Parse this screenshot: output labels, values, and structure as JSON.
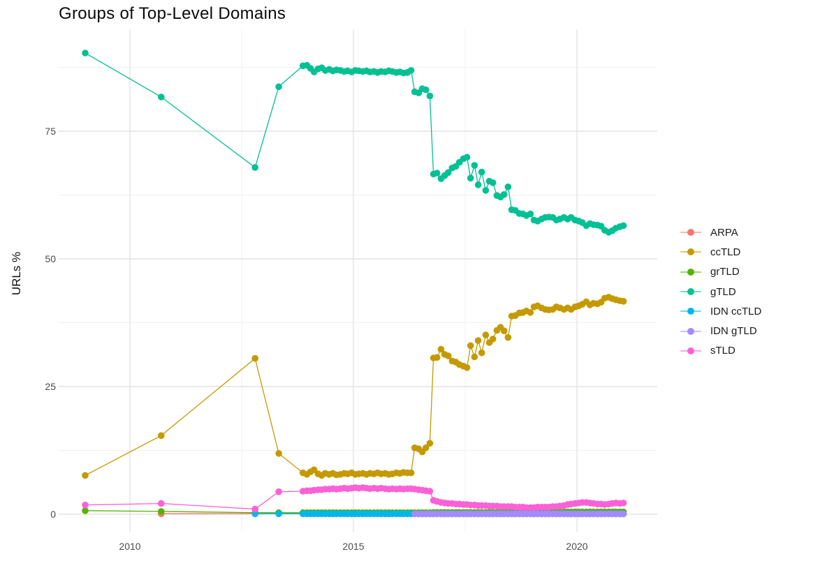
{
  "title": "Groups of Top-Level Domains",
  "chart_data": {
    "type": "line",
    "title": "Groups of Top-Level Domains",
    "xlabel": "",
    "ylabel": "URLs %",
    "xlim": [
      2008.4,
      2021.6
    ],
    "ylim": [
      -4.5,
      95
    ],
    "grid": true,
    "legend_position": "right",
    "x_ticks": [
      {
        "value": 2010,
        "label": "2010"
      },
      {
        "value": 2015,
        "label": "2015"
      },
      {
        "value": 2020,
        "label": "2020"
      }
    ],
    "y_ticks": [
      {
        "value": 0,
        "label": "0"
      },
      {
        "value": 25,
        "label": "25"
      },
      {
        "value": 50,
        "label": "50"
      },
      {
        "value": 75,
        "label": "75"
      }
    ],
    "x_minor": [
      2012.5,
      2017.5
    ],
    "y_minor": [
      12.5,
      37.5,
      62.5,
      87.5
    ],
    "monthly_x": [
      2013.87,
      2013.96,
      2014.04,
      2014.12,
      2014.21,
      2014.29,
      2014.37,
      2014.46,
      2014.54,
      2014.62,
      2014.71,
      2014.79,
      2014.87,
      2014.96,
      2015.04,
      2015.12,
      2015.21,
      2015.29,
      2015.37,
      2015.46,
      2015.54,
      2015.62,
      2015.71,
      2015.79,
      2015.87,
      2015.96,
      2016.04,
      2016.12,
      2016.21,
      2016.29,
      2016.37,
      2016.46,
      2016.54,
      2016.62,
      2016.71,
      2016.79,
      2016.87,
      2016.96,
      2017.04,
      2017.12,
      2017.21,
      2017.29,
      2017.37,
      2017.46,
      2017.54,
      2017.62,
      2017.71,
      2017.79,
      2017.87,
      2017.96,
      2018.04,
      2018.12,
      2018.21,
      2018.29,
      2018.37,
      2018.46,
      2018.54,
      2018.62,
      2018.71,
      2018.79,
      2018.87,
      2018.96,
      2019.04,
      2019.12,
      2019.21,
      2019.29,
      2019.37,
      2019.46,
      2019.54,
      2019.62,
      2019.71,
      2019.79,
      2019.87,
      2019.96,
      2020.04,
      2020.12,
      2020.21,
      2020.29,
      2020.37,
      2020.46,
      2020.54,
      2020.62,
      2020.71,
      2020.79,
      2020.87,
      2020.96,
      2021.04
    ],
    "series": [
      {
        "name": "ARPA",
        "color": "#F8766D",
        "early": [
          [
            2010.7,
            0.1
          ],
          [
            2012.8,
            0.1
          ],
          [
            2013.33,
            0.1
          ]
        ],
        "monthly": [
          0.1,
          0.1,
          0.1,
          0.1,
          0.1,
          0.1,
          0.1,
          0.1,
          0.1,
          0.1,
          0.1,
          0.1,
          0.1,
          0.1,
          0.1,
          0.1,
          0.1,
          0.1,
          0.1,
          0.1,
          0.1,
          0.1,
          0.1,
          0.1,
          0.1,
          0.1,
          0.1,
          0.1,
          0.1,
          0.1,
          0.1,
          0.1,
          0.1,
          0.1,
          0.1,
          0.1,
          0.1,
          0.1,
          0.1,
          0.1,
          0.1,
          0.1,
          0.1,
          0.1,
          0.1,
          0.1,
          0.1,
          0.1,
          0.1,
          0.1,
          0.1,
          0.1,
          0.1,
          0.1,
          0.1,
          0.1,
          0.1,
          0.1,
          0.1,
          0.1,
          0.1,
          0.1,
          0.1,
          0.1,
          0.1,
          0.1,
          0.1,
          0.1,
          0.1,
          0.1,
          0.1,
          0.1,
          0.1,
          0.1,
          0.1,
          0.1,
          0.1,
          0.1,
          0.1,
          0.1,
          0.1,
          0.1,
          0.1,
          0.1,
          0.1,
          0.1,
          0.1
        ]
      },
      {
        "name": "ccTLD",
        "color": "#C49A00",
        "early": [
          [
            2009.0,
            7.6
          ],
          [
            2010.7,
            15.4
          ],
          [
            2012.8,
            30.5
          ],
          [
            2013.33,
            11.9
          ]
        ],
        "monthly": [
          8.1,
          7.8,
          8.3,
          8.7,
          7.9,
          7.6,
          8.0,
          7.8,
          8.0,
          7.7,
          7.8,
          8.0,
          7.9,
          8.1,
          7.8,
          7.9,
          8.0,
          7.8,
          8.0,
          7.9,
          8.1,
          7.9,
          8.0,
          7.8,
          7.9,
          8.1,
          8.0,
          8.2,
          8.1,
          8.1,
          13.0,
          12.8,
          12.2,
          13.0,
          13.9,
          30.6,
          30.7,
          32.3,
          31.3,
          31.0,
          30.0,
          29.8,
          29.3,
          29.0,
          28.7,
          33.0,
          30.8,
          34.0,
          31.6,
          35.1,
          33.6,
          34.3,
          36.0,
          36.6,
          35.9,
          34.6,
          38.8,
          38.9,
          39.4,
          39.5,
          39.8,
          39.5,
          40.6,
          40.8,
          40.4,
          40.1,
          40.0,
          40.1,
          40.6,
          40.4,
          40.1,
          40.4,
          40.1,
          40.6,
          40.8,
          41.1,
          41.6,
          41.0,
          41.3,
          41.2,
          41.5,
          42.3,
          42.5,
          42.2,
          42.0,
          41.8,
          41.7
        ]
      },
      {
        "name": "grTLD",
        "color": "#53B400",
        "early": [
          [
            2009.0,
            0.7
          ],
          [
            2010.7,
            0.55
          ],
          [
            2012.8,
            0.3
          ],
          [
            2013.33,
            0.3
          ]
        ],
        "monthly": [
          0.3,
          0.3,
          0.3,
          0.3,
          0.3,
          0.3,
          0.3,
          0.3,
          0.3,
          0.3,
          0.3,
          0.3,
          0.3,
          0.3,
          0.3,
          0.3,
          0.3,
          0.3,
          0.3,
          0.3,
          0.3,
          0.3,
          0.3,
          0.3,
          0.3,
          0.3,
          0.3,
          0.3,
          0.3,
          0.3,
          0.3,
          0.3,
          0.3,
          0.3,
          0.3,
          0.35,
          0.35,
          0.35,
          0.35,
          0.35,
          0.35,
          0.35,
          0.35,
          0.35,
          0.35,
          0.35,
          0.35,
          0.35,
          0.35,
          0.35,
          0.35,
          0.35,
          0.35,
          0.35,
          0.4,
          0.4,
          0.4,
          0.4,
          0.4,
          0.4,
          0.4,
          0.4,
          0.4,
          0.4,
          0.4,
          0.45,
          0.45,
          0.45,
          0.45,
          0.45,
          0.45,
          0.45,
          0.45,
          0.45,
          0.45,
          0.45,
          0.45,
          0.45,
          0.45,
          0.45,
          0.45,
          0.45,
          0.45,
          0.45,
          0.45,
          0.45,
          0.45
        ]
      },
      {
        "name": "gTLD",
        "color": "#00C094",
        "early": [
          [
            2009.0,
            90.3
          ],
          [
            2010.7,
            81.7
          ],
          [
            2012.8,
            67.9
          ],
          [
            2013.33,
            83.7
          ]
        ],
        "monthly": [
          87.8,
          87.9,
          87.3,
          86.6,
          87.2,
          87.4,
          86.9,
          87.1,
          86.8,
          87.0,
          86.9,
          86.7,
          86.8,
          86.6,
          86.9,
          86.8,
          86.7,
          86.8,
          86.6,
          86.7,
          86.5,
          86.7,
          86.6,
          86.8,
          86.7,
          86.5,
          86.6,
          86.4,
          86.5,
          86.9,
          82.7,
          82.5,
          83.3,
          83.1,
          81.9,
          66.6,
          66.8,
          65.7,
          66.3,
          66.9,
          67.8,
          68.1,
          68.9,
          69.6,
          69.9,
          65.8,
          68.3,
          64.5,
          67.0,
          63.4,
          65.2,
          64.9,
          62.4,
          62.1,
          62.6,
          64.1,
          59.6,
          59.5,
          58.9,
          58.8,
          58.5,
          58.8,
          57.6,
          57.4,
          57.8,
          58.1,
          58.2,
          58.1,
          57.6,
          57.8,
          58.1,
          57.8,
          58.1,
          57.6,
          57.4,
          57.1,
          56.5,
          56.9,
          56.7,
          56.6,
          56.4,
          55.6,
          55.2,
          55.5,
          56.0,
          56.3,
          56.5
        ]
      },
      {
        "name": "IDN ccTLD",
        "color": "#00B6EB",
        "early": [
          [
            2012.8,
            0.1
          ],
          [
            2013.33,
            0.1
          ]
        ],
        "monthly": [
          0.1,
          0.1,
          0.1,
          0.1,
          0.1,
          0.1,
          0.1,
          0.1,
          0.1,
          0.1,
          0.1,
          0.1,
          0.1,
          0.1,
          0.1,
          0.1,
          0.1,
          0.1,
          0.1,
          0.1,
          0.1,
          0.1,
          0.1,
          0.1,
          0.1,
          0.1,
          0.1,
          0.1,
          0.1,
          0.1,
          0.1,
          0.1,
          0.1,
          0.1,
          0.1,
          0.1,
          0.1,
          0.1,
          0.1,
          0.1,
          0.1,
          0.1,
          0.1,
          0.1,
          0.1,
          0.1,
          0.1,
          0.1,
          0.1,
          0.1,
          0.1,
          0.1,
          0.1,
          0.1,
          0.1,
          0.1,
          0.1,
          0.1,
          0.1,
          0.1,
          0.1,
          0.1,
          0.1,
          0.1,
          0.1,
          0.1,
          0.1,
          0.1,
          0.1,
          0.1,
          0.1,
          0.1,
          0.1,
          0.1,
          0.1,
          0.1,
          0.1,
          0.1,
          0.1,
          0.1,
          0.1,
          0.1,
          0.1,
          0.1,
          0.1,
          0.1,
          0.1
        ]
      },
      {
        "name": "IDN gTLD",
        "color": "#A58AFF",
        "early": [],
        "monthly": [
          null,
          null,
          null,
          null,
          null,
          null,
          null,
          null,
          null,
          null,
          null,
          null,
          null,
          null,
          null,
          null,
          null,
          null,
          null,
          null,
          null,
          null,
          null,
          null,
          null,
          null,
          null,
          null,
          null,
          null,
          0.05,
          0.05,
          0.05,
          0.05,
          0.05,
          0.05,
          0.05,
          0.05,
          0.05,
          0.05,
          0.05,
          0.05,
          0.05,
          0.05,
          0.05,
          0.05,
          0.05,
          0.05,
          0.05,
          0.05,
          0.05,
          0.05,
          0.05,
          0.05,
          0.05,
          0.05,
          0.05,
          0.05,
          0.05,
          0.05,
          0.05,
          0.05,
          0.05,
          0.05,
          0.05,
          0.05,
          0.05,
          0.05,
          0.05,
          0.05,
          0.05,
          0.05,
          0.05,
          0.05,
          0.05,
          0.05,
          0.05,
          0.05,
          0.05,
          0.05,
          0.05,
          0.05,
          0.05,
          0.05,
          0.05,
          0.05,
          0.05
        ]
      },
      {
        "name": "sTLD",
        "color": "#FB61D7",
        "early": [
          [
            2009.0,
            1.8
          ],
          [
            2010.7,
            2.1
          ],
          [
            2012.8,
            1.0
          ],
          [
            2013.33,
            4.4
          ]
        ],
        "monthly": [
          4.5,
          4.6,
          4.6,
          4.7,
          4.8,
          4.8,
          4.9,
          4.9,
          5.0,
          4.9,
          5.0,
          5.1,
          5.0,
          5.1,
          5.2,
          5.1,
          5.2,
          5.1,
          5.0,
          5.1,
          5.0,
          5.1,
          5.0,
          4.9,
          5.0,
          4.9,
          5.0,
          4.9,
          5.0,
          5.0,
          4.9,
          4.8,
          4.7,
          4.6,
          4.5,
          2.7,
          2.5,
          2.3,
          2.2,
          2.1,
          2.1,
          2.0,
          2.0,
          1.9,
          1.9,
          1.8,
          1.8,
          1.7,
          1.7,
          1.7,
          1.6,
          1.6,
          1.6,
          1.5,
          1.5,
          1.5,
          1.5,
          1.4,
          1.4,
          1.4,
          1.3,
          1.3,
          1.3,
          1.4,
          1.4,
          1.4,
          1.4,
          1.5,
          1.5,
          1.6,
          1.7,
          1.9,
          2.0,
          2.1,
          2.2,
          2.3,
          2.3,
          2.2,
          2.1,
          2.0,
          2.0,
          1.9,
          2.0,
          2.1,
          2.2,
          2.1,
          2.2
        ]
      }
    ]
  }
}
